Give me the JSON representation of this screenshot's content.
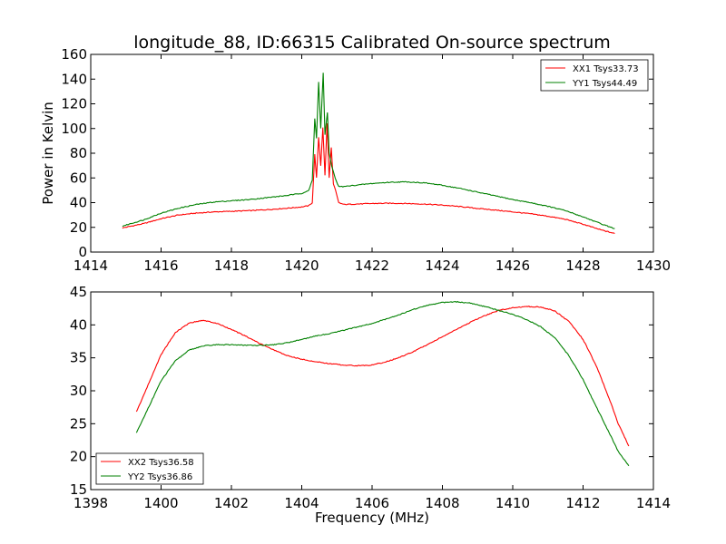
{
  "figure": {
    "title": "longitude_88, ID:66315 Calibrated On-source spectrum"
  },
  "chart_data": [
    {
      "type": "line",
      "title": "longitude_88, ID:66315 Calibrated On-source spectrum",
      "xlabel": "",
      "ylabel": "Power in Kelvin",
      "xlim": [
        1414,
        1430
      ],
      "ylim": [
        0,
        160
      ],
      "xticks": [
        1414,
        1416,
        1418,
        1420,
        1422,
        1424,
        1426,
        1428,
        1430
      ],
      "yticks": [
        0,
        20,
        40,
        60,
        80,
        100,
        120,
        140,
        160
      ],
      "grid": false,
      "legend_position": "top-right",
      "series": [
        {
          "name": "XX1 Tsys33.73",
          "color": "#ff0000",
          "points": [
            [
              1414.9,
              19.5
            ],
            [
              1415.5,
              23
            ],
            [
              1416.0,
              27
            ],
            [
              1416.5,
              30
            ],
            [
              1417.0,
              31.5
            ],
            [
              1417.5,
              32.5
            ],
            [
              1418.0,
              33
            ],
            [
              1418.5,
              33.5
            ],
            [
              1419.0,
              34.3
            ],
            [
              1419.5,
              35.3
            ],
            [
              1420.0,
              36.5
            ],
            [
              1420.2,
              37.5
            ],
            [
              1420.3,
              40
            ],
            [
              1420.37,
              79
            ],
            [
              1420.42,
              60
            ],
            [
              1420.48,
              93
            ],
            [
              1420.54,
              70
            ],
            [
              1420.6,
              101
            ],
            [
              1420.66,
              62
            ],
            [
              1420.72,
              104
            ],
            [
              1420.78,
              60
            ],
            [
              1420.84,
              85
            ],
            [
              1420.9,
              55
            ],
            [
              1420.96,
              50
            ],
            [
              1421.05,
              40
            ],
            [
              1421.2,
              38.5
            ],
            [
              1421.5,
              38.8
            ],
            [
              1422.0,
              39.3
            ],
            [
              1422.5,
              39.5
            ],
            [
              1423.0,
              39.3
            ],
            [
              1423.5,
              38.8
            ],
            [
              1424.0,
              38
            ],
            [
              1424.5,
              36.8
            ],
            [
              1425.0,
              35.3
            ],
            [
              1425.5,
              34
            ],
            [
              1426.0,
              32.5
            ],
            [
              1426.5,
              31
            ],
            [
              1427.0,
              29
            ],
            [
              1427.5,
              26.5
            ],
            [
              1428.0,
              22.5
            ],
            [
              1428.5,
              18
            ],
            [
              1428.9,
              15
            ]
          ]
        },
        {
          "name": "YY1 Tsys44.49",
          "color": "#008000",
          "points": [
            [
              1414.9,
              21
            ],
            [
              1415.5,
              26
            ],
            [
              1416.0,
              31.5
            ],
            [
              1416.5,
              35.5
            ],
            [
              1417.0,
              38.5
            ],
            [
              1417.5,
              40.5
            ],
            [
              1418.0,
              41.5
            ],
            [
              1418.5,
              42.5
            ],
            [
              1419.0,
              44
            ],
            [
              1419.5,
              45.5
            ],
            [
              1420.0,
              47.5
            ],
            [
              1420.2,
              50
            ],
            [
              1420.3,
              58
            ],
            [
              1420.37,
              108
            ],
            [
              1420.42,
              92
            ],
            [
              1420.48,
              138
            ],
            [
              1420.54,
              100
            ],
            [
              1420.61,
              145
            ],
            [
              1420.66,
              95
            ],
            [
              1420.73,
              113
            ],
            [
              1420.78,
              80
            ],
            [
              1420.85,
              70
            ],
            [
              1420.95,
              60
            ],
            [
              1421.05,
              53
            ],
            [
              1421.2,
              53
            ],
            [
              1421.5,
              54
            ],
            [
              1422.0,
              55.5
            ],
            [
              1422.5,
              56.5
            ],
            [
              1423.0,
              56.8
            ],
            [
              1423.5,
              56
            ],
            [
              1424.0,
              54
            ],
            [
              1424.5,
              51.5
            ],
            [
              1425.0,
              48.5
            ],
            [
              1425.5,
              45.5
            ],
            [
              1426.0,
              42.5
            ],
            [
              1426.5,
              40
            ],
            [
              1427.0,
              37
            ],
            [
              1427.5,
              33.5
            ],
            [
              1428.0,
              28.5
            ],
            [
              1428.5,
              23
            ],
            [
              1428.9,
              19
            ]
          ]
        }
      ]
    },
    {
      "type": "line",
      "title": "",
      "xlabel": "Frequency (MHz)",
      "ylabel": "",
      "xlim": [
        1398,
        1414
      ],
      "ylim": [
        15,
        45
      ],
      "xticks": [
        1398,
        1400,
        1402,
        1404,
        1406,
        1408,
        1410,
        1412,
        1414
      ],
      "yticks": [
        15,
        20,
        25,
        30,
        35,
        40,
        45
      ],
      "grid": false,
      "legend_position": "bottom-left",
      "series": [
        {
          "name": "XX2 Tsys36.58",
          "color": "#ff0000",
          "points": [
            [
              1399.3,
              26.8
            ],
            [
              1399.6,
              30.5
            ],
            [
              1400.0,
              35.5
            ],
            [
              1400.4,
              38.8
            ],
            [
              1400.8,
              40.3
            ],
            [
              1401.2,
              40.7
            ],
            [
              1401.6,
              40.2
            ],
            [
              1402.0,
              39.3
            ],
            [
              1402.4,
              38.3
            ],
            [
              1402.8,
              37.2
            ],
            [
              1403.2,
              36.2
            ],
            [
              1403.6,
              35.3
            ],
            [
              1404.0,
              34.8
            ],
            [
              1404.4,
              34.4
            ],
            [
              1404.8,
              34.1
            ],
            [
              1405.2,
              33.9
            ],
            [
              1405.6,
              33.8
            ],
            [
              1406.0,
              33.9
            ],
            [
              1406.4,
              34.4
            ],
            [
              1406.8,
              35.1
            ],
            [
              1407.2,
              36
            ],
            [
              1407.6,
              37.1
            ],
            [
              1408.0,
              38.2
            ],
            [
              1408.4,
              39.3
            ],
            [
              1408.8,
              40.4
            ],
            [
              1409.2,
              41.4
            ],
            [
              1409.6,
              42.2
            ],
            [
              1410.0,
              42.6
            ],
            [
              1410.4,
              42.8
            ],
            [
              1410.8,
              42.7
            ],
            [
              1411.2,
              42.1
            ],
            [
              1411.6,
              40.5
            ],
            [
              1412.0,
              37.8
            ],
            [
              1412.4,
              33.5
            ],
            [
              1412.8,
              28
            ],
            [
              1413.0,
              25
            ],
            [
              1413.3,
              21.6
            ]
          ]
        },
        {
          "name": "YY2 Tsys36.86",
          "color": "#008000",
          "points": [
            [
              1399.3,
              23.6
            ],
            [
              1399.6,
              27
            ],
            [
              1400.0,
              31.5
            ],
            [
              1400.4,
              34.5
            ],
            [
              1400.8,
              36.2
            ],
            [
              1401.2,
              36.8
            ],
            [
              1401.6,
              37
            ],
            [
              1402.0,
              37
            ],
            [
              1402.4,
              36.9
            ],
            [
              1402.8,
              36.9
            ],
            [
              1403.2,
              37
            ],
            [
              1403.6,
              37.3
            ],
            [
              1404.0,
              37.8
            ],
            [
              1404.4,
              38.3
            ],
            [
              1404.8,
              38.7
            ],
            [
              1405.2,
              39.2
            ],
            [
              1405.6,
              39.7
            ],
            [
              1406.0,
              40.2
            ],
            [
              1406.4,
              40.9
            ],
            [
              1406.8,
              41.6
            ],
            [
              1407.2,
              42.4
            ],
            [
              1407.6,
              43
            ],
            [
              1408.0,
              43.4
            ],
            [
              1408.4,
              43.5
            ],
            [
              1408.8,
              43.3
            ],
            [
              1409.2,
              42.8
            ],
            [
              1409.6,
              42.2
            ],
            [
              1410.0,
              41.6
            ],
            [
              1410.4,
              40.8
            ],
            [
              1410.8,
              39.7
            ],
            [
              1411.2,
              38
            ],
            [
              1411.6,
              35.3
            ],
            [
              1412.0,
              31.7
            ],
            [
              1412.4,
              27.3
            ],
            [
              1412.8,
              23
            ],
            [
              1413.0,
              20.8
            ],
            [
              1413.3,
              18.6
            ]
          ]
        }
      ]
    }
  ]
}
